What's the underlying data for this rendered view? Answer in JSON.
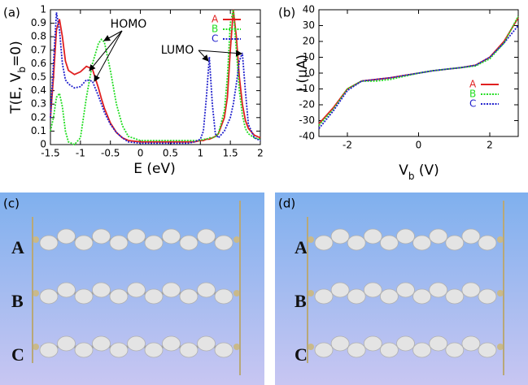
{
  "chart_data": [
    {
      "type": "line",
      "panel": "(a)",
      "xlabel": [
        "E (eV)"
      ],
      "ylabel": [
        "T(E, V",
        "b",
        "=0)"
      ],
      "x": [
        -1.5,
        -1.45,
        -1.4,
        -1.35,
        -1.3,
        -1.25,
        -1.2,
        -1.1,
        -1.0,
        -0.9,
        -0.8,
        -0.7,
        -0.65,
        -0.6,
        -0.5,
        -0.4,
        -0.3,
        -0.2,
        0,
        0.2,
        0.4,
        0.6,
        0.8,
        0.9,
        1.0,
        1.05,
        1.1,
        1.15,
        1.2,
        1.25,
        1.3,
        1.4,
        1.45,
        1.5,
        1.55,
        1.6,
        1.65,
        1.7,
        1.75,
        1.8,
        1.9,
        2.0
      ],
      "series": [
        {
          "name": "A",
          "color": "#e02020",
          "style": "solid",
          "values": [
            0.2,
            0.5,
            0.85,
            0.93,
            0.8,
            0.62,
            0.55,
            0.52,
            0.54,
            0.58,
            0.56,
            0.42,
            0.34,
            0.27,
            0.16,
            0.09,
            0.05,
            0.03,
            0.02,
            0.02,
            0.02,
            0.02,
            0.02,
            0.02,
            0.03,
            0.03,
            0.04,
            0.04,
            0.05,
            0.06,
            0.08,
            0.2,
            0.35,
            0.7,
            1.0,
            0.8,
            0.5,
            0.3,
            0.18,
            0.12,
            0.07,
            0.05
          ]
        },
        {
          "name": "B",
          "color": "#22dd22",
          "style": "dotted",
          "values": [
            0.1,
            0.2,
            0.35,
            0.38,
            0.28,
            0.1,
            0.02,
            0.0,
            0.05,
            0.35,
            0.6,
            0.75,
            0.78,
            0.76,
            0.55,
            0.3,
            0.14,
            0.06,
            0.03,
            0.03,
            0.03,
            0.03,
            0.03,
            0.03,
            0.03,
            0.04,
            0.04,
            0.05,
            0.05,
            0.06,
            0.08,
            0.25,
            0.5,
            0.9,
            1.0,
            0.7,
            0.4,
            0.22,
            0.12,
            0.08,
            0.05,
            0.04
          ]
        },
        {
          "name": "C",
          "color": "#2020cc",
          "style": "dotted",
          "values": [
            0.2,
            0.6,
            0.98,
            0.85,
            0.6,
            0.48,
            0.45,
            0.42,
            0.43,
            0.48,
            0.47,
            0.36,
            0.3,
            0.24,
            0.15,
            0.09,
            0.05,
            0.02,
            0.01,
            0.01,
            0.01,
            0.01,
            0.01,
            0.02,
            0.04,
            0.1,
            0.35,
            0.65,
            0.3,
            0.08,
            0.05,
            0.1,
            0.15,
            0.2,
            0.3,
            0.45,
            0.62,
            0.68,
            0.4,
            0.15,
            0.05,
            0.03
          ]
        }
      ],
      "xlim": [
        -1.5,
        2
      ],
      "xticks": [
        -1.5,
        -1,
        -0.5,
        0,
        0.5,
        1,
        1.5,
        2
      ],
      "ylim": [
        0,
        1
      ],
      "yticks": [
        0,
        0.1,
        0.2,
        0.3,
        0.4,
        0.5,
        0.6,
        0.7,
        0.8,
        0.9,
        1
      ],
      "legend": "upper right",
      "annotations": [
        {
          "text": "HOMO"
        },
        {
          "text": "LUMO"
        }
      ]
    },
    {
      "type": "line",
      "panel": "(b)",
      "xlabel": [
        "V",
        "b",
        " (V)"
      ],
      "ylabel": [
        "I (μA)"
      ],
      "x": [
        -2.8,
        -2.4,
        -2,
        -1.6,
        -1.2,
        -0.8,
        -0.4,
        0,
        0.4,
        0.8,
        1.2,
        1.6,
        2,
        2.4,
        2.8
      ],
      "series": [
        {
          "name": "A",
          "color": "#e02020",
          "style": "solid",
          "values": [
            -32,
            -22,
            -10,
            -5,
            -4,
            -3,
            -1.5,
            0,
            1.5,
            2.5,
            3.5,
            5,
            10,
            20,
            35
          ]
        },
        {
          "name": "B",
          "color": "#22dd22",
          "style": "dotted",
          "values": [
            -33,
            -23,
            -10,
            -5,
            -5,
            -4,
            -2,
            0,
            1.5,
            2.5,
            3.5,
            4.5,
            9,
            19,
            36
          ]
        },
        {
          "name": "C",
          "color": "#2020cc",
          "style": "dotted",
          "values": [
            -35,
            -24,
            -11,
            -5,
            -4,
            -3,
            -1.5,
            0,
            1.5,
            2.5,
            3.5,
            5,
            10,
            19,
            30
          ]
        }
      ],
      "xlim": [
        -2.8,
        2.8
      ],
      "xticks": [
        -2,
        0,
        2
      ],
      "ylim": [
        -40,
        40
      ],
      "yticks": [
        -40,
        -30,
        -20,
        -10,
        0,
        10,
        20,
        30,
        40
      ],
      "legend": "center right"
    }
  ],
  "images": [
    {
      "panel": "(c)",
      "rows": [
        "A",
        "B",
        "C"
      ]
    },
    {
      "panel": "(d)",
      "rows": [
        "A",
        "B",
        "C"
      ]
    }
  ]
}
